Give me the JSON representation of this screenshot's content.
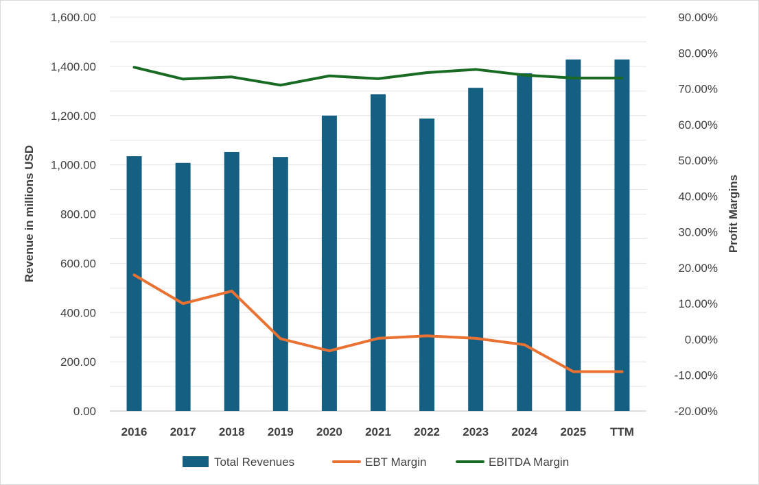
{
  "chart_data": {
    "type": "bar",
    "categories": [
      "2016",
      "2017",
      "2018",
      "2019",
      "2020",
      "2021",
      "2022",
      "2023",
      "2024",
      "2025",
      "TTM"
    ],
    "series": [
      {
        "name": "Total Revenues",
        "type": "bar",
        "axis": "left",
        "color": "#156082",
        "values": [
          1035,
          1008,
          1052,
          1032,
          1200,
          1287,
          1188,
          1313,
          1372,
          1428,
          1428
        ]
      },
      {
        "name": "EBT Margin",
        "type": "line",
        "axis": "right",
        "color": "#e97132",
        "values": [
          18.0,
          10.0,
          13.5,
          0.2,
          -3.2,
          0.3,
          1.0,
          0.3,
          -1.5,
          -9.0,
          -9.0
        ]
      },
      {
        "name": "EBITDA Margin",
        "type": "line",
        "axis": "right",
        "color": "#196b24",
        "values": [
          76.0,
          72.7,
          73.3,
          71.0,
          73.6,
          72.8,
          74.5,
          75.4,
          73.8,
          73.0,
          73.0
        ]
      }
    ],
    "ylabel": "Revenue in millions USD",
    "y2label": "Profit Margins",
    "ylim": [
      0,
      1600
    ],
    "y2lim": [
      -20,
      90
    ],
    "yticks": [
      "0.00",
      "200.00",
      "400.00",
      "600.00",
      "800.00",
      "1,000.00",
      "1,200.00",
      "1,400.00",
      "1,600.00"
    ],
    "y2ticks": [
      "-20.00%",
      "-10.00%",
      "0.00%",
      "10.00%",
      "20.00%",
      "30.00%",
      "40.00%",
      "50.00%",
      "60.00%",
      "70.00%",
      "80.00%",
      "90.00%"
    ],
    "grid": true,
    "legend_position": "bottom"
  }
}
